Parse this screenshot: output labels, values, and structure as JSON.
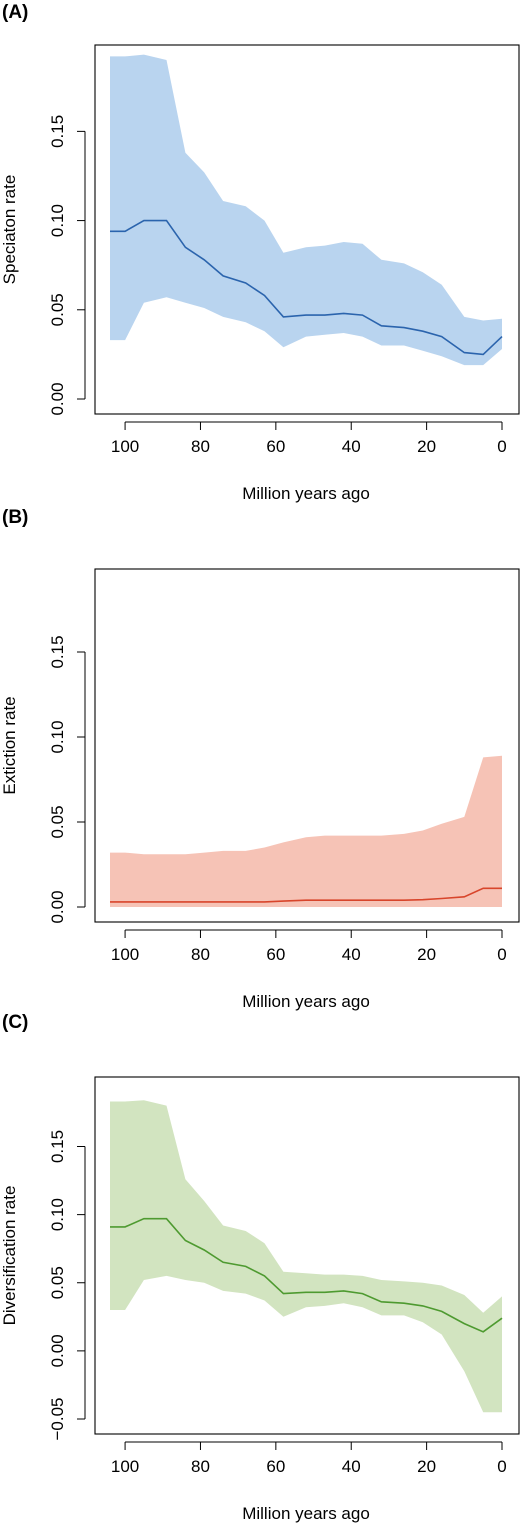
{
  "colors": {
    "speciation_line": "#2b64ad",
    "speciation_band": "#b9d4ef",
    "extinction_line": "#d8452b",
    "extinction_band": "#f6c3b6",
    "diversification_line": "#4e9a30",
    "diversification_band": "#d2e4c0"
  },
  "chart_data": [
    {
      "panel": "(A)",
      "type": "line",
      "xlabel": "Million years ago",
      "ylabel": "Speciaton rate",
      "xlim": [
        105,
        0
      ],
      "ylim": [
        0,
        0.19
      ],
      "xticks": [
        100,
        80,
        60,
        40,
        20,
        0
      ],
      "yticks": [
        0.0,
        0.05,
        0.1,
        0.15
      ],
      "ytick_labels": [
        "0.00",
        "0.05",
        "0.10",
        "0.15"
      ],
      "x": [
        104,
        100,
        95,
        89,
        84,
        79,
        74,
        68,
        63,
        58,
        52,
        47,
        42,
        37,
        32,
        26,
        21,
        16,
        10,
        5,
        0
      ],
      "mean": [
        0.094,
        0.094,
        0.1,
        0.1,
        0.085,
        0.078,
        0.069,
        0.065,
        0.058,
        0.046,
        0.047,
        0.047,
        0.048,
        0.047,
        0.041,
        0.04,
        0.038,
        0.035,
        0.026,
        0.025,
        0.035
      ],
      "lower": [
        0.033,
        0.033,
        0.054,
        0.057,
        0.054,
        0.051,
        0.046,
        0.043,
        0.038,
        0.029,
        0.035,
        0.036,
        0.037,
        0.035,
        0.03,
        0.03,
        0.027,
        0.024,
        0.019,
        0.019,
        0.028
      ],
      "upper": [
        0.192,
        0.192,
        0.193,
        0.19,
        0.138,
        0.127,
        0.111,
        0.108,
        0.1,
        0.082,
        0.085,
        0.086,
        0.088,
        0.087,
        0.078,
        0.076,
        0.071,
        0.064,
        0.046,
        0.044,
        0.045
      ]
    },
    {
      "panel": "(B)",
      "type": "line",
      "xlabel": "Million years ago",
      "ylabel": "Extiction rate",
      "xlim": [
        105,
        0
      ],
      "ylim": [
        0,
        0.19
      ],
      "xticks": [
        100,
        80,
        60,
        40,
        20,
        0
      ],
      "yticks": [
        0.0,
        0.05,
        0.1,
        0.15
      ],
      "ytick_labels": [
        "0.00",
        "0.05",
        "0.10",
        "0.15"
      ],
      "x": [
        104,
        100,
        95,
        89,
        84,
        79,
        74,
        68,
        63,
        58,
        52,
        47,
        42,
        37,
        32,
        26,
        21,
        16,
        10,
        5,
        0
      ],
      "mean": [
        0.003,
        0.003,
        0.003,
        0.003,
        0.003,
        0.003,
        0.003,
        0.003,
        0.003,
        0.0035,
        0.004,
        0.004,
        0.004,
        0.004,
        0.004,
        0.004,
        0.0043,
        0.005,
        0.006,
        0.011,
        0.011
      ],
      "lower": [
        0,
        0,
        0,
        0,
        0,
        0,
        0,
        0,
        0,
        0,
        0,
        0,
        0,
        0,
        0,
        0,
        0,
        0,
        0,
        0,
        0
      ],
      "upper": [
        0.032,
        0.032,
        0.031,
        0.031,
        0.031,
        0.032,
        0.033,
        0.033,
        0.035,
        0.038,
        0.041,
        0.042,
        0.042,
        0.042,
        0.042,
        0.043,
        0.045,
        0.049,
        0.053,
        0.088,
        0.089
      ]
    },
    {
      "panel": "(C)",
      "type": "line",
      "xlabel": "Million years ago",
      "ylabel": "Diversification rate",
      "xlim": [
        105,
        0
      ],
      "ylim": [
        -0.05,
        0.19
      ],
      "xticks": [
        100,
        80,
        60,
        40,
        20,
        0
      ],
      "yticks": [
        -0.05,
        0.0,
        0.05,
        0.1,
        0.15
      ],
      "ytick_labels": [
        "−0.05",
        "0.00",
        "0.05",
        "0.10",
        "0.15"
      ],
      "x": [
        104,
        100,
        95,
        89,
        84,
        79,
        74,
        68,
        63,
        58,
        52,
        47,
        42,
        37,
        32,
        26,
        21,
        16,
        10,
        5,
        0
      ],
      "mean": [
        0.091,
        0.091,
        0.097,
        0.097,
        0.081,
        0.074,
        0.065,
        0.062,
        0.055,
        0.042,
        0.043,
        0.043,
        0.044,
        0.042,
        0.036,
        0.035,
        0.033,
        0.029,
        0.02,
        0.014,
        0.024
      ],
      "lower": [
        0.03,
        0.03,
        0.052,
        0.055,
        0.052,
        0.05,
        0.044,
        0.042,
        0.037,
        0.025,
        0.032,
        0.033,
        0.035,
        0.032,
        0.026,
        0.026,
        0.021,
        0.012,
        -0.015,
        -0.045,
        -0.045
      ],
      "upper": [
        0.183,
        0.183,
        0.184,
        0.18,
        0.126,
        0.11,
        0.092,
        0.088,
        0.079,
        0.058,
        0.057,
        0.056,
        0.056,
        0.055,
        0.052,
        0.051,
        0.05,
        0.048,
        0.041,
        0.028,
        0.04
      ]
    }
  ]
}
